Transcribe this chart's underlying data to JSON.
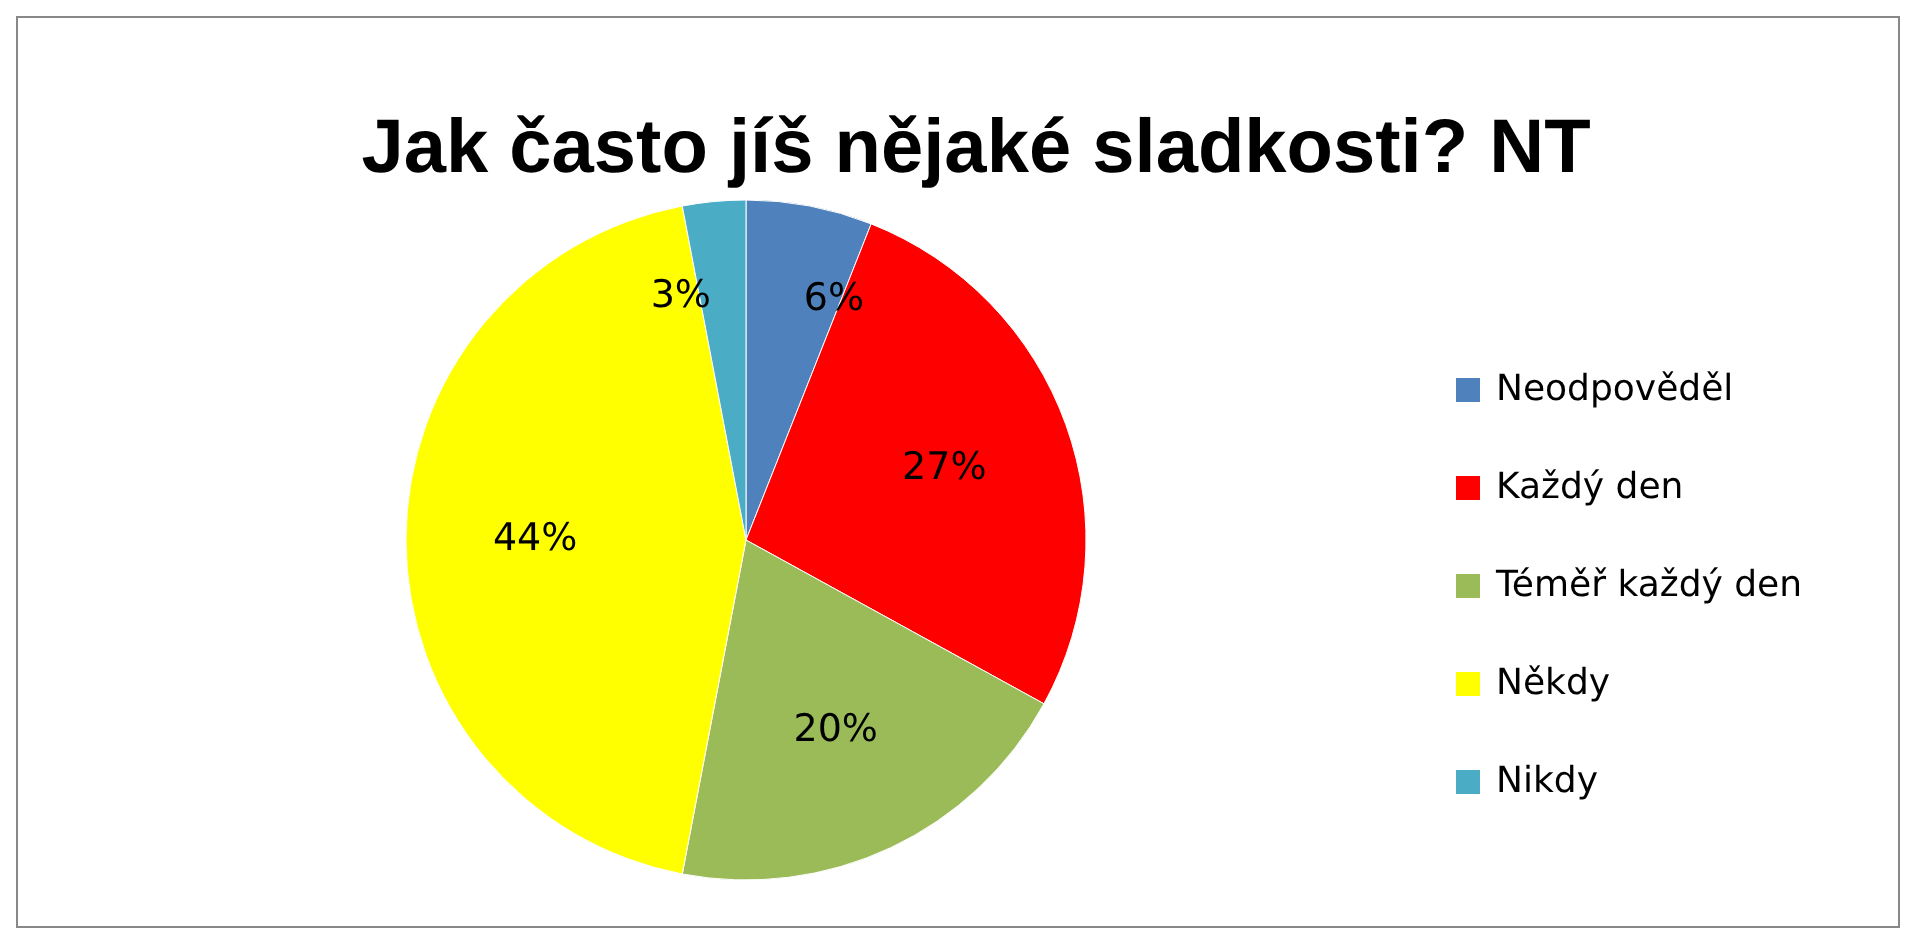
{
  "chart_data": {
    "type": "pie",
    "title": "Jak často jíš nějaké sladkosti? NT",
    "categories": [
      "Neodpověděl",
      "Každý den",
      "Téměř každý den",
      "Někdy",
      "Nikdy"
    ],
    "values": [
      6,
      27,
      20,
      44,
      3
    ],
    "colors": [
      "#4f81bd",
      "#ff0000",
      "#9bbb59",
      "#ffff00",
      "#4bacc6"
    ],
    "value_labels": [
      "6%",
      "27%",
      "20%",
      "44%",
      "3%"
    ],
    "legend": "right"
  }
}
